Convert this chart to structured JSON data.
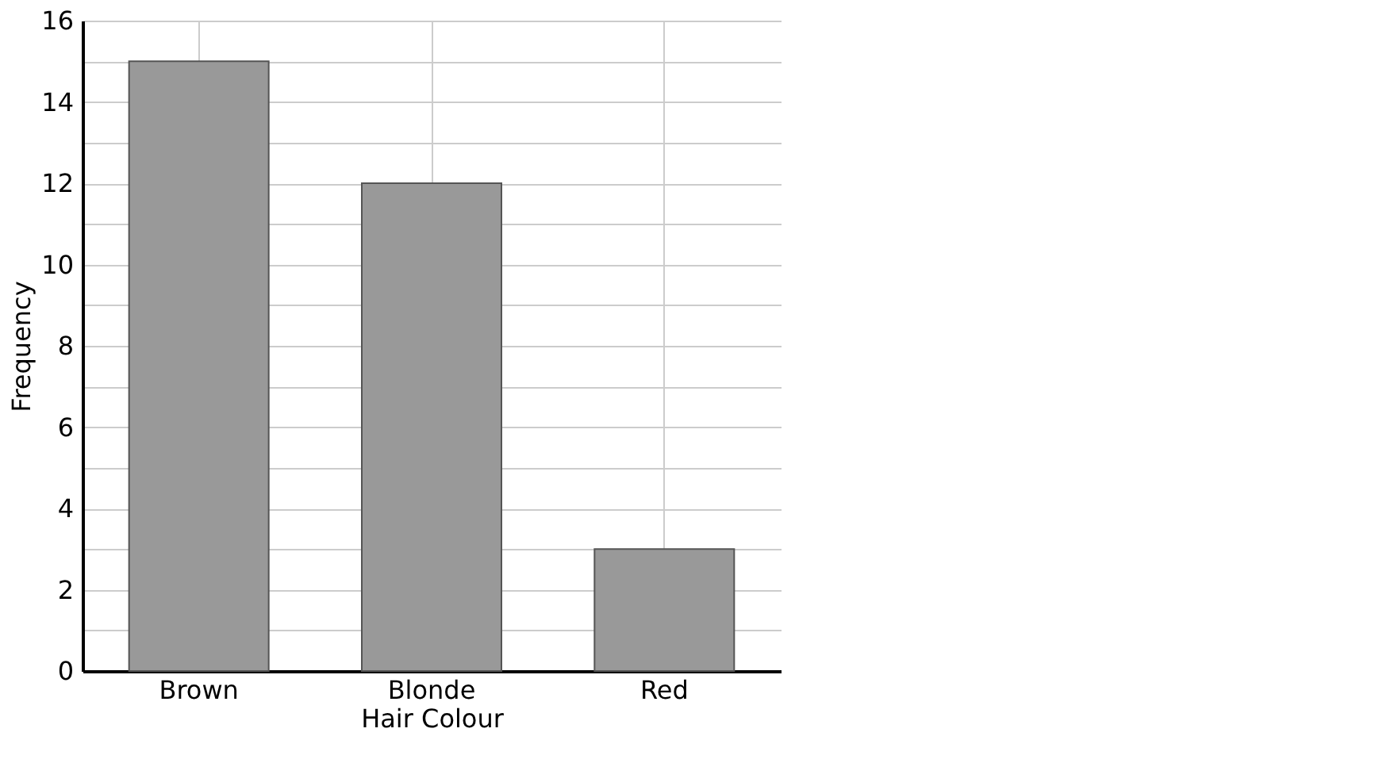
{
  "chart_data": {
    "type": "bar",
    "xlabel": "Hair Colour",
    "ylabel": "Frequency",
    "categories": [
      "Brown",
      "Blonde",
      "Red"
    ],
    "values": [
      15,
      12,
      3
    ],
    "color": "#999999",
    "ylim": [
      0,
      16
    ],
    "yticks": [
      0,
      {
        "value": 1,
        "label": null
      },
      2,
      {
        "value": 3,
        "label": null
      },
      4,
      {
        "value": 5,
        "label": null
      },
      6,
      {
        "value": 7,
        "label": null
      },
      8,
      {
        "value": 9,
        "label": null
      },
      10,
      {
        "value": 11,
        "label": null
      },
      12,
      {
        "value": 13,
        "label": null
      },
      14,
      {
        "value": 15,
        "label": null
      },
      16
    ],
    "grid": true
  }
}
